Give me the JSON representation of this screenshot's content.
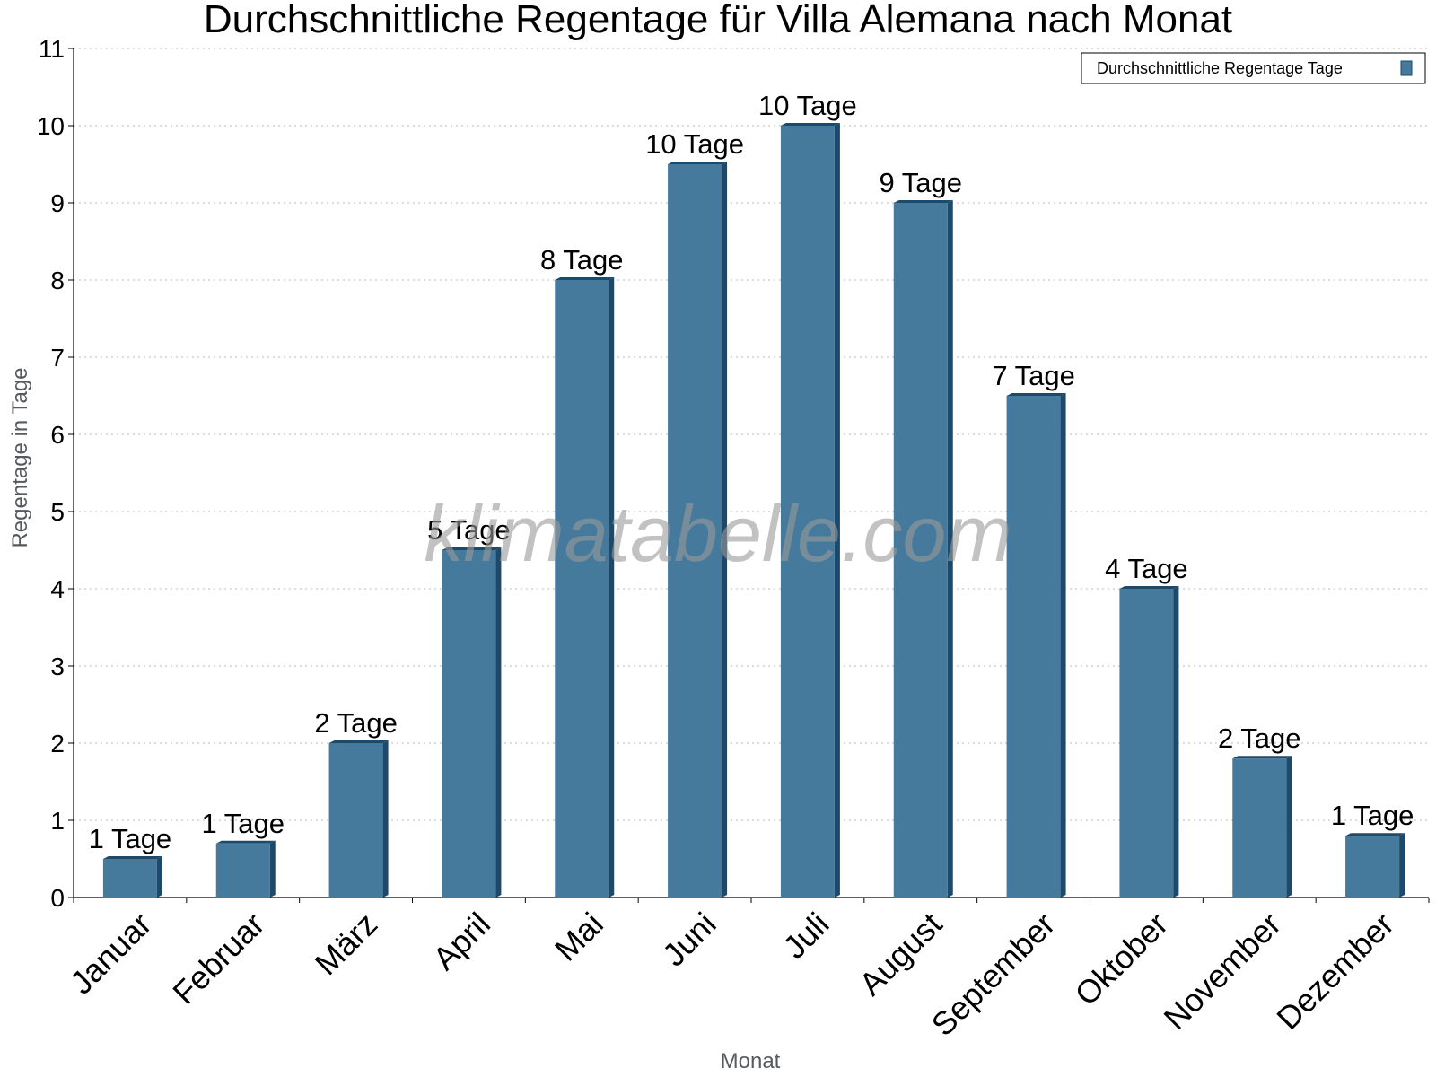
{
  "chart_data": {
    "type": "bar",
    "title": "Durchschnittliche Regentage für Villa Alemana nach Monat",
    "xlabel": "Monat",
    "ylabel": "Regentage in Tage",
    "categories": [
      "Januar",
      "Februar",
      "März",
      "April",
      "Mai",
      "Juni",
      "Juli",
      "August",
      "September",
      "Oktober",
      "November",
      "Dezember"
    ],
    "series": [
      {
        "name": "Durchschnittliche Regentage Tage",
        "values": [
          0.5,
          0.7,
          2.0,
          4.5,
          8.0,
          9.5,
          10.0,
          9.0,
          6.5,
          4.0,
          1.8,
          0.8
        ],
        "labels": [
          "1 Tage",
          "1 Tage",
          "2 Tage",
          "5 Tage",
          "8 Tage",
          "10 Tage",
          "10 Tage",
          "9 Tage",
          "7 Tage",
          "4 Tage",
          "2 Tage",
          "1 Tage"
        ],
        "color": "#467a9c",
        "side_color": "#1d4a6a"
      }
    ],
    "ylim": [
      0,
      11
    ],
    "yticks": [
      "0",
      "1",
      "2",
      "3",
      "4",
      "5",
      "6",
      "7",
      "8",
      "9",
      "10",
      "11"
    ],
    "grid": true,
    "legend_position": "top-right"
  },
  "watermark": "klimatabelle.com"
}
